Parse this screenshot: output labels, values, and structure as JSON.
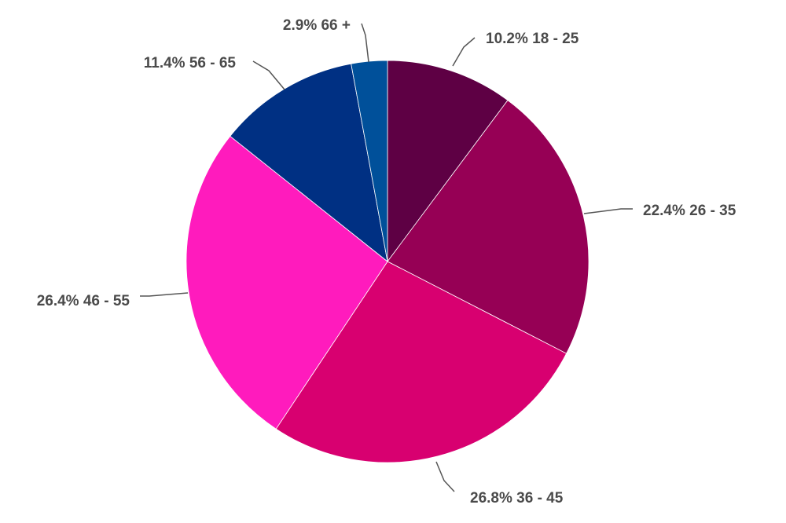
{
  "chart_data": {
    "type": "pie",
    "start_angle_deg": 0,
    "direction": "clockwise",
    "slices": [
      {
        "category": "18 - 25",
        "percent_label": "10.2%",
        "value": 10.2,
        "color": "#5e0044"
      },
      {
        "category": "26 - 35",
        "percent_label": "22.4%",
        "value": 22.4,
        "color": "#960055"
      },
      {
        "category": "36 - 45",
        "percent_label": "26.8%",
        "value": 26.8,
        "color": "#d80070"
      },
      {
        "category": "46 - 55",
        "percent_label": "26.4%",
        "value": 26.4,
        "color": "#ff1bbd"
      },
      {
        "category": "56 - 65",
        "percent_label": "11.4%",
        "value": 11.4,
        "color": "#003083"
      },
      {
        "category": "66 +",
        "percent_label": "2.9%",
        "value": 2.9,
        "color": "#00509a"
      }
    ]
  }
}
